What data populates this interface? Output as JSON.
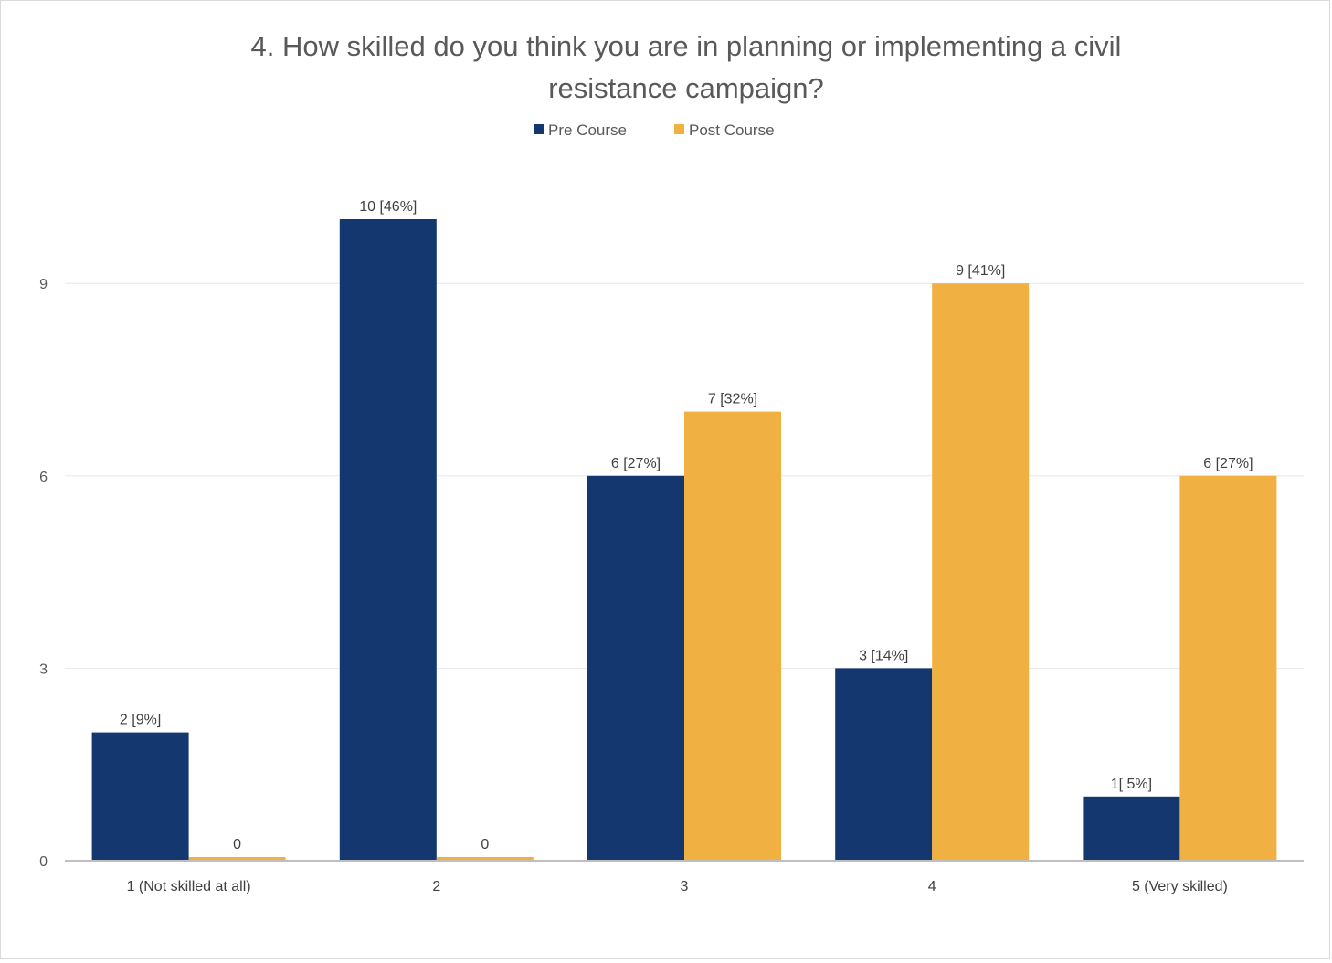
{
  "chart_data": {
    "type": "bar",
    "title_lines": [
      "4. How skilled do you think you are in planning or implementing a civil",
      "resistance campaign?"
    ],
    "categories": [
      "1 (Not skilled at all)",
      "2",
      "3",
      "4",
      "5 (Very skilled)"
    ],
    "series": [
      {
        "name": "Pre Course",
        "color": "#13376e",
        "values": [
          2,
          10,
          6,
          3,
          1
        ],
        "labels": [
          "2 [9%]",
          "10 [46%]",
          "6 [27%]",
          "3 [14%]",
          "1[ 5%]"
        ]
      },
      {
        "name": "Post Course",
        "color": "#f0b042",
        "values": [
          0,
          0,
          7,
          9,
          6
        ],
        "labels": [
          "0",
          "0",
          "7 [32%]",
          "9 [41%]",
          "6 [27%]"
        ]
      }
    ],
    "yticks": [
      "0",
      "3",
      "6",
      "9"
    ],
    "ylim": [
      0,
      10
    ],
    "grid": true,
    "legend_position": "top"
  }
}
